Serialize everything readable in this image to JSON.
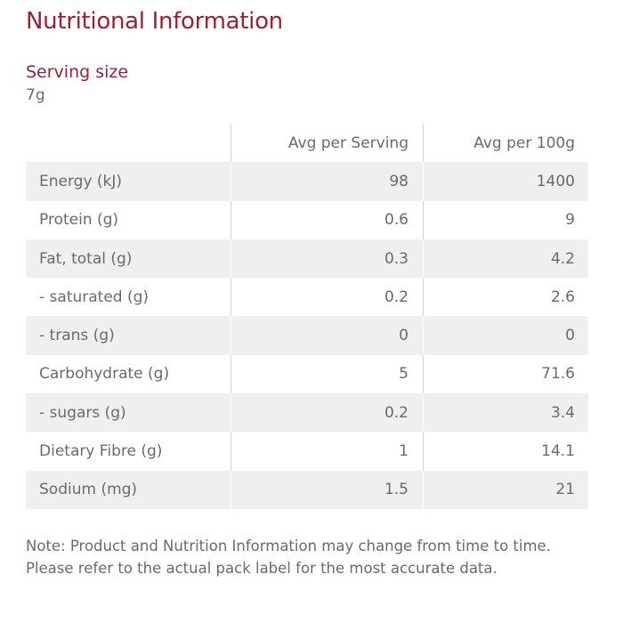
{
  "title": "Nutritional Information",
  "serving": {
    "label": "Serving size",
    "value": "7g"
  },
  "table": {
    "columns": [
      "",
      "Avg per Serving",
      "Avg per 100g"
    ],
    "rows": [
      {
        "nutrient": "Energy (kJ)",
        "per_serving": "98",
        "per_100g": "1400"
      },
      {
        "nutrient": "Protein (g)",
        "per_serving": "0.6",
        "per_100g": "9"
      },
      {
        "nutrient": "Fat, total (g)",
        "per_serving": "0.3",
        "per_100g": "4.2"
      },
      {
        "nutrient": "- saturated (g)",
        "per_serving": "0.2",
        "per_100g": "2.6"
      },
      {
        "nutrient": "- trans (g)",
        "per_serving": "0",
        "per_100g": "0"
      },
      {
        "nutrient": "Carbohydrate (g)",
        "per_serving": "5",
        "per_100g": "71.6"
      },
      {
        "nutrient": "- sugars (g)",
        "per_serving": "0.2",
        "per_100g": "3.4"
      },
      {
        "nutrient": "Dietary Fibre (g)",
        "per_serving": "1",
        "per_100g": "14.1"
      },
      {
        "nutrient": "Sodium (mg)",
        "per_serving": "1.5",
        "per_100g": "21"
      }
    ]
  },
  "note": "Note: Product and Nutrition Information may change from time to time. Please refer to the actual pack label for the most accurate data.",
  "colors": {
    "heading": "#9b2233",
    "text": "#6a6a6a",
    "row_alt": "#efefef",
    "divider": "#d2d2d2"
  }
}
